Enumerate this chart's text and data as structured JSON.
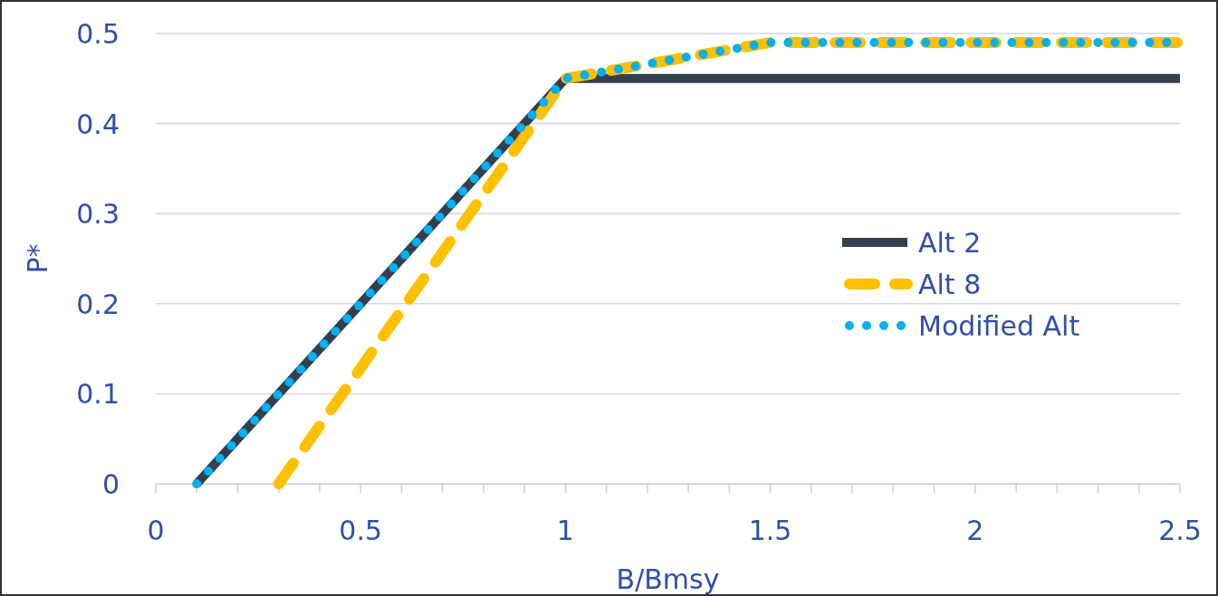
{
  "chart_data": {
    "type": "line",
    "xlabel": "B/Bmsy",
    "ylabel": "P*",
    "xlim": [
      0,
      2.5
    ],
    "ylim": [
      0,
      0.5
    ],
    "xticks": [
      0,
      {
        "value": 0.1,
        "label": null
      },
      {
        "value": 0.2,
        "label": null
      },
      {
        "value": 0.3,
        "label": null
      },
      {
        "value": 0.4,
        "label": null
      },
      0.5,
      {
        "value": 0.6,
        "label": null
      },
      {
        "value": 0.7,
        "label": null
      },
      {
        "value": 0.8,
        "label": null
      },
      {
        "value": 0.9,
        "label": null
      },
      1,
      {
        "value": 1.1,
        "label": null
      },
      {
        "value": 1.2,
        "label": null
      },
      {
        "value": 1.3,
        "label": null
      },
      {
        "value": 1.4,
        "label": null
      },
      1.5,
      {
        "value": 1.6,
        "label": null
      },
      {
        "value": 1.7,
        "label": null
      },
      {
        "value": 1.8,
        "label": null
      },
      {
        "value": 1.9,
        "label": null
      },
      2,
      {
        "value": 2.1,
        "label": null
      },
      {
        "value": 2.2,
        "label": null
      },
      {
        "value": 2.3,
        "label": null
      },
      {
        "value": 2.4,
        "label": null
      },
      2.5
    ],
    "yticks": [
      0,
      0.1,
      0.2,
      0.3,
      0.4,
      0.5
    ],
    "grid": "y",
    "legend": "right",
    "series": [
      {
        "name": "Alt 2",
        "color": "#323f4f",
        "line_style": "solid",
        "x": [
          0.1,
          1,
          2.5
        ],
        "values": [
          0,
          0.45,
          0.45
        ]
      },
      {
        "name": "Alt 8",
        "color": "#ffc000",
        "line_style": "dashed",
        "x": [
          0.3,
          1,
          1.5,
          2.5
        ],
        "values": [
          0,
          0.45,
          0.49,
          0.49
        ]
      },
      {
        "name": "Modified Alt",
        "color": "#00b0f0",
        "line_style": "dotted",
        "x": [
          0.1,
          1,
          1.5,
          2.5
        ],
        "values": [
          0,
          0.45,
          0.49,
          0.49
        ]
      }
    ]
  }
}
